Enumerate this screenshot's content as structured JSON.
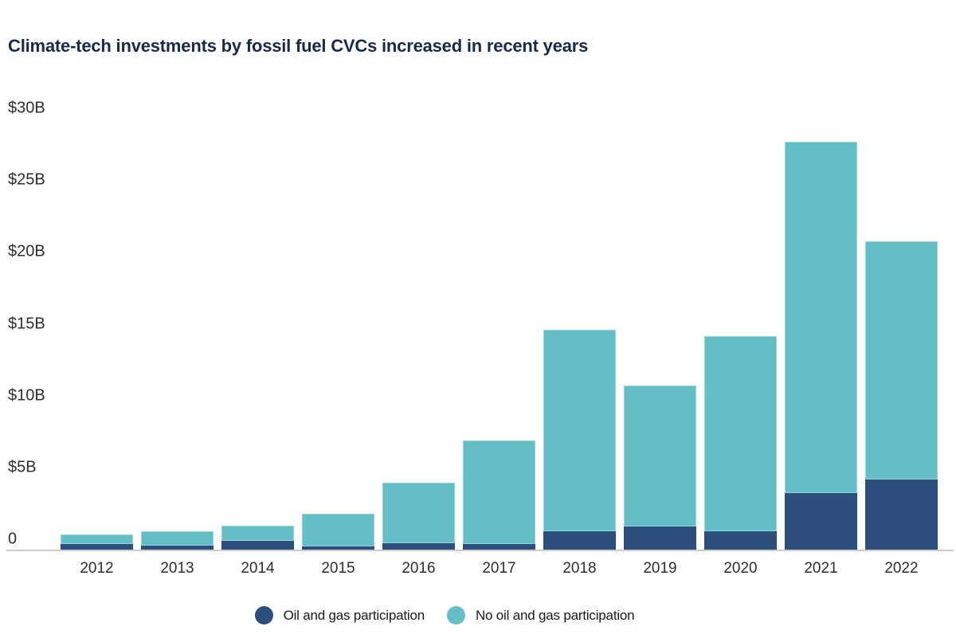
{
  "title": "Climate-tech investments by fossil fuel CVCs increased in recent years",
  "chart_data": {
    "type": "bar",
    "stacked": true,
    "title": "Climate-tech investments by fossil fuel CVCs increased in recent years",
    "unit": "USD billions",
    "categories": [
      "2012",
      "2013",
      "2014",
      "2015",
      "2016",
      "2017",
      "2018",
      "2019",
      "2020",
      "2021",
      "2022"
    ],
    "series": [
      {
        "name": "Oil and gas participation",
        "color": "#2C4E7D",
        "values": [
          0.4,
          0.25,
          0.6,
          0.2,
          0.45,
          0.4,
          1.25,
          1.55,
          1.25,
          3.85,
          4.75
        ]
      },
      {
        "name": "No oil and gas participation",
        "color": "#63BEC5",
        "values": [
          0.65,
          0.95,
          1.0,
          2.2,
          4.1,
          7.05,
          13.7,
          9.55,
          13.25,
          23.85,
          16.15
        ]
      }
    ],
    "totals": [
      1.05,
      1.2,
      1.6,
      2.4,
      4.55,
      7.45,
      14.95,
      11.1,
      14.5,
      27.7,
      20.9
    ],
    "y_axis": {
      "range": [
        0,
        30
      ],
      "grid": false,
      "ticks": [
        {
          "label": "$30B",
          "value": 30
        },
        {
          "label": "$25B",
          "value": 25
        },
        {
          "label": "$20B",
          "value": 20
        },
        {
          "label": "$15B",
          "value": 15
        },
        {
          "label": "$10B",
          "value": 10
        },
        {
          "label": "$5B",
          "value": 5
        },
        {
          "label": "0",
          "value": 0
        }
      ]
    },
    "legend_position": "bottom"
  },
  "legend": {
    "items": [
      {
        "label": "Oil and gas participation",
        "color": "#2C4E7D"
      },
      {
        "label": "No oil and gas participation",
        "color": "#63BEC5"
      }
    ]
  },
  "colors": {
    "title": "#16294E",
    "axis_label": "#2E2E2E",
    "axis_line": "#CBCBCB",
    "oil_gas": "#2C4E7D",
    "no_oil_gas": "#63BEC5",
    "background": "#FFFFFF"
  }
}
